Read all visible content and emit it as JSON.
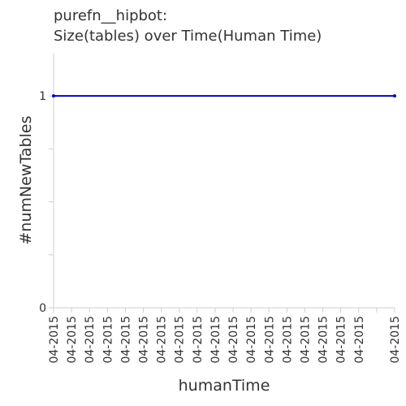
{
  "chart_data": {
    "type": "line",
    "title_lines": [
      "purefn__hipbot:",
      "Size(tables) over Time(Human Time)"
    ],
    "xlabel": "humanTime",
    "ylabel": "#numNewTables",
    "ylim": [
      0,
      1.2
    ],
    "y_tick_values": [
      0,
      0.25,
      0.5,
      0.75,
      1
    ],
    "y_tick_labels": [
      "0",
      "",
      "",
      "",
      "1"
    ],
    "x_tick_labels": [
      "04-2015",
      "04-2015",
      "04-2015",
      "04-2015",
      "04-2015",
      "04-2015",
      "04-2015",
      "04-2015",
      "04-2015",
      "04-2015",
      "04-2015",
      "04-2015",
      "04-2015",
      "04-2015",
      "04-2015",
      "04-2015",
      "04-2015",
      "04-2015",
      "04-2015",
      "04-2015"
    ],
    "x_tick_label_indices": [
      0,
      1,
      2,
      3,
      4,
      5,
      6,
      7,
      8,
      9,
      10,
      11,
      12,
      13,
      14,
      15,
      16,
      17,
      19
    ],
    "series": [
      {
        "x": [
          0,
          19
        ],
        "values": [
          1,
          1
        ]
      }
    ],
    "grid": false,
    "colors": {
      "line": "#0000cc",
      "axis": "#cfcfcf",
      "text": "#333333"
    }
  }
}
